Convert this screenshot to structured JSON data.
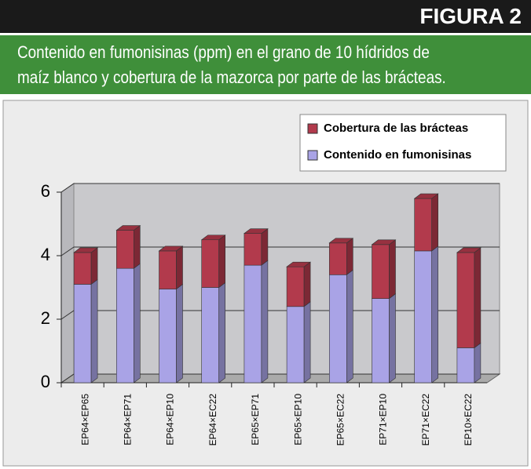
{
  "figure_label": "FIGURA 2",
  "caption_lines": [
    "Contenido en fumonisinas (ppm) en el grano de 10 hídridos de",
    "maíz blanco y cobertura de la mazorca por parte de las brácteas."
  ],
  "chart_data": {
    "type": "stacked_bar_3d",
    "categories": [
      "EP64×EP65",
      "EP64×EP71",
      "EP64×EP10",
      "EP64×EC22",
      "EP65×EP71",
      "EP65×EP10",
      "EP65×EC22",
      "EP71×EP10",
      "EP71×EC22",
      "EP10×EC22"
    ],
    "series": [
      {
        "name": "Contenido en fumonisinas",
        "color": "#a9a3e6",
        "values": [
          3.1,
          3.6,
          2.95,
          3.0,
          3.7,
          2.4,
          3.4,
          2.65,
          4.15,
          1.1
        ]
      },
      {
        "name": "Cobertura de las brácteas",
        "color": "#b23a4c",
        "values": [
          1.0,
          1.2,
          1.2,
          1.5,
          1.0,
          1.25,
          1.0,
          1.7,
          1.65,
          3.0
        ]
      }
    ],
    "ylim": [
      0,
      6
    ],
    "yticks": [
      0,
      2,
      4,
      6
    ],
    "grid": true,
    "legend": "upper right"
  }
}
